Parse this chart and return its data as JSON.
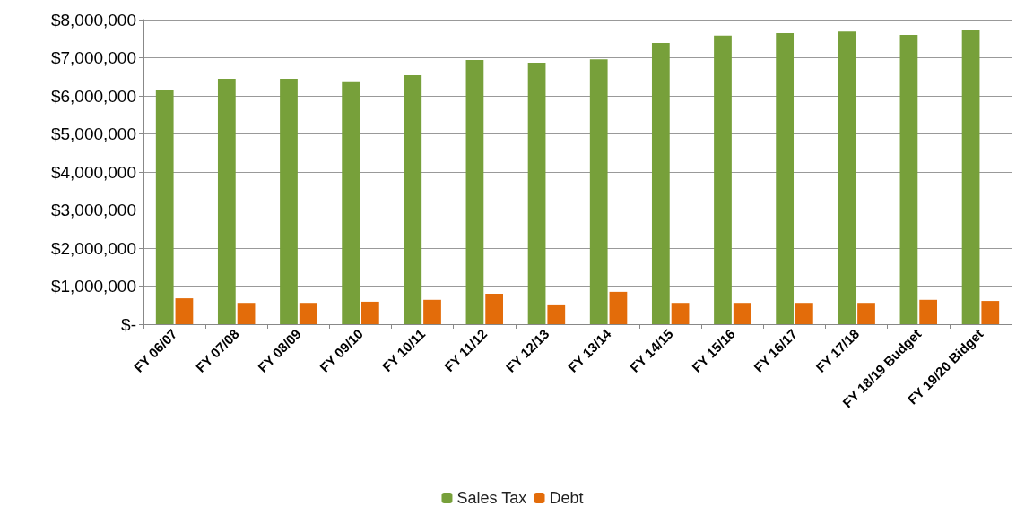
{
  "chart_data": {
    "type": "bar",
    "categories": [
      "FY 06/07",
      "FY 07/08",
      "FY 08/09",
      "FY 09/10",
      "FY 10/11",
      "FY 11/12",
      "FY 12/13",
      "FY 13/14",
      "FY 14/15",
      "FY 15/16",
      "FY 16/17",
      "FY 17/18",
      "FY 18/19 Budget",
      "FY 19/20 Bidget"
    ],
    "series": [
      {
        "name": "Sales Tax",
        "color": "#77a03a",
        "values": [
          6160000,
          6450000,
          6450000,
          6380000,
          6540000,
          6940000,
          6870000,
          6960000,
          7390000,
          7580000,
          7650000,
          7690000,
          7600000,
          7720000
        ]
      },
      {
        "name": "Debt",
        "color": "#e36c0a",
        "values": [
          680000,
          560000,
          560000,
          590000,
          640000,
          800000,
          520000,
          850000,
          560000,
          560000,
          560000,
          560000,
          640000,
          610000
        ]
      }
    ],
    "ylim": [
      0,
      8000000
    ],
    "yticks": [
      {
        "value": 0,
        "label": "$-"
      },
      {
        "value": 1000000,
        "label": "$1,000,000"
      },
      {
        "value": 2000000,
        "label": "$2,000,000"
      },
      {
        "value": 3000000,
        "label": "$3,000,000"
      },
      {
        "value": 4000000,
        "label": "$4,000,000"
      },
      {
        "value": 5000000,
        "label": "$5,000,000"
      },
      {
        "value": 6000000,
        "label": "$6,000,000"
      },
      {
        "value": 7000000,
        "label": "$7,000,000"
      },
      {
        "value": 8000000,
        "label": "$8,000,000"
      }
    ],
    "grid": "y",
    "legend": "bottom"
  }
}
